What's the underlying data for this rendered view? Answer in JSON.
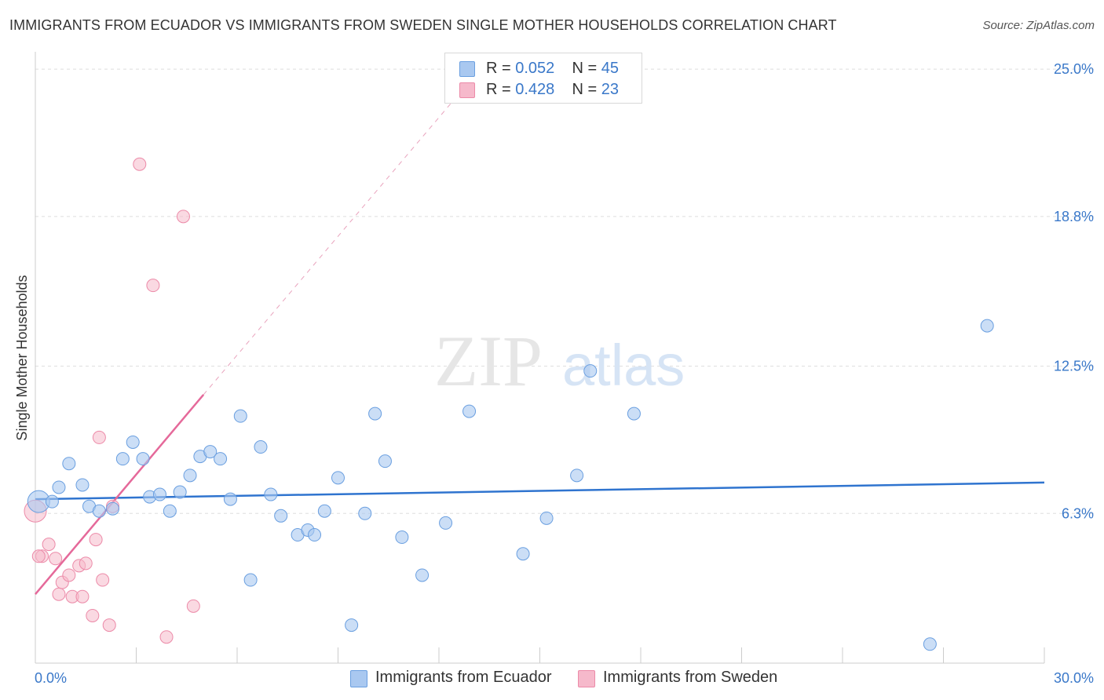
{
  "title": "IMMIGRANTS FROM ECUADOR VS IMMIGRANTS FROM SWEDEN SINGLE MOTHER HOUSEHOLDS CORRELATION CHART",
  "source": "Source: ZipAtlas.com",
  "watermark": {
    "zip": "ZIP",
    "atlas": "atlas"
  },
  "colors": {
    "ecuador_fill": "#a9c8f0",
    "ecuador_stroke": "#6a9fe0",
    "ecuador_line": "#2f74cf",
    "sweden_fill": "#f6b9cb",
    "sweden_stroke": "#ec8aa8",
    "sweden_line": "#e5699a",
    "tick_text": "#3a78c9"
  },
  "legend": {
    "rows": [
      {
        "r_label": "R =",
        "r_value": "0.052",
        "n_label": "N =",
        "n_value": "45"
      },
      {
        "r_label": "R =",
        "r_value": "0.428",
        "n_label": "N =",
        "n_value": "23"
      }
    ]
  },
  "bottom_legend": {
    "ecuador": "Immigrants from Ecuador",
    "sweden": "Immigrants from Sweden"
  },
  "chart_data": {
    "type": "scatter",
    "title": "IMMIGRANTS FROM ECUADOR VS IMMIGRANTS FROM SWEDEN SINGLE MOTHER HOUSEHOLDS CORRELATION CHART",
    "xlabel": "",
    "ylabel": "Single Mother Households",
    "xlim": [
      0,
      30
    ],
    "ylim": [
      0,
      25.6
    ],
    "x_tick_labels": [
      "0.0%",
      "30.0%"
    ],
    "y_ticks": [
      6.3,
      12.5,
      18.8,
      25.0
    ],
    "y_tick_labels": [
      "6.3%",
      "12.5%",
      "18.8%",
      "25.0%"
    ],
    "series": [
      {
        "name": "Immigrants from Ecuador",
        "r": 0.052,
        "n": 45,
        "trend": {
          "x": [
            0,
            30
          ],
          "y": [
            6.9,
            7.6
          ]
        },
        "points": [
          {
            "x": 0.1,
            "y": 6.8
          },
          {
            "x": 0.5,
            "y": 6.8
          },
          {
            "x": 0.7,
            "y": 7.4
          },
          {
            "x": 1.0,
            "y": 8.4
          },
          {
            "x": 1.4,
            "y": 7.5
          },
          {
            "x": 1.6,
            "y": 6.6
          },
          {
            "x": 1.9,
            "y": 6.4
          },
          {
            "x": 2.3,
            "y": 6.5
          },
          {
            "x": 2.6,
            "y": 8.6
          },
          {
            "x": 2.9,
            "y": 9.3
          },
          {
            "x": 3.2,
            "y": 8.6
          },
          {
            "x": 3.4,
            "y": 7.0
          },
          {
            "x": 3.7,
            "y": 7.1
          },
          {
            "x": 4.0,
            "y": 6.4
          },
          {
            "x": 4.3,
            "y": 7.2
          },
          {
            "x": 4.6,
            "y": 7.9
          },
          {
            "x": 4.9,
            "y": 8.7
          },
          {
            "x": 5.2,
            "y": 8.9
          },
          {
            "x": 5.5,
            "y": 8.6
          },
          {
            "x": 5.8,
            "y": 6.9
          },
          {
            "x": 6.1,
            "y": 10.4
          },
          {
            "x": 6.4,
            "y": 3.5
          },
          {
            "x": 6.7,
            "y": 9.1
          },
          {
            "x": 7.0,
            "y": 7.1
          },
          {
            "x": 7.3,
            "y": 6.2
          },
          {
            "x": 7.8,
            "y": 5.4
          },
          {
            "x": 8.1,
            "y": 5.6
          },
          {
            "x": 8.3,
            "y": 5.4
          },
          {
            "x": 8.6,
            "y": 6.4
          },
          {
            "x": 9.0,
            "y": 7.8
          },
          {
            "x": 9.4,
            "y": 1.6
          },
          {
            "x": 9.8,
            "y": 6.3
          },
          {
            "x": 10.1,
            "y": 10.5
          },
          {
            "x": 10.4,
            "y": 8.5
          },
          {
            "x": 10.9,
            "y": 5.3
          },
          {
            "x": 11.5,
            "y": 3.7
          },
          {
            "x": 12.2,
            "y": 5.9
          },
          {
            "x": 12.9,
            "y": 10.6
          },
          {
            "x": 14.5,
            "y": 4.6
          },
          {
            "x": 15.2,
            "y": 6.1
          },
          {
            "x": 16.1,
            "y": 7.9
          },
          {
            "x": 16.5,
            "y": 12.3
          },
          {
            "x": 17.8,
            "y": 10.5
          },
          {
            "x": 26.6,
            "y": 0.8
          },
          {
            "x": 28.3,
            "y": 14.2
          }
        ]
      },
      {
        "name": "Immigrants from Sweden",
        "r": 0.428,
        "n": 23,
        "trend": {
          "x": [
            0,
            5.0
          ],
          "y": [
            2.9,
            11.3
          ]
        },
        "trend_extension": {
          "x": [
            5.0,
            12.5
          ],
          "y": [
            11.3,
            23.8
          ]
        },
        "points": [
          {
            "x": 0.0,
            "y": 6.4
          },
          {
            "x": 0.2,
            "y": 4.5
          },
          {
            "x": 0.4,
            "y": 5.0
          },
          {
            "x": 0.6,
            "y": 4.4
          },
          {
            "x": 0.7,
            "y": 2.9
          },
          {
            "x": 0.8,
            "y": 3.4
          },
          {
            "x": 1.0,
            "y": 3.7
          },
          {
            "x": 1.1,
            "y": 2.8
          },
          {
            "x": 1.3,
            "y": 4.1
          },
          {
            "x": 1.4,
            "y": 2.8
          },
          {
            "x": 1.5,
            "y": 4.2
          },
          {
            "x": 1.7,
            "y": 2.0
          },
          {
            "x": 1.8,
            "y": 5.2
          },
          {
            "x": 1.9,
            "y": 9.5
          },
          {
            "x": 2.0,
            "y": 3.5
          },
          {
            "x": 2.2,
            "y": 1.6
          },
          {
            "x": 2.3,
            "y": 6.6
          },
          {
            "x": 3.1,
            "y": 21.0
          },
          {
            "x": 3.5,
            "y": 15.9
          },
          {
            "x": 3.9,
            "y": 1.1
          },
          {
            "x": 4.4,
            "y": 18.8
          },
          {
            "x": 4.7,
            "y": 2.4
          },
          {
            "x": 0.1,
            "y": 4.5
          }
        ]
      }
    ]
  }
}
